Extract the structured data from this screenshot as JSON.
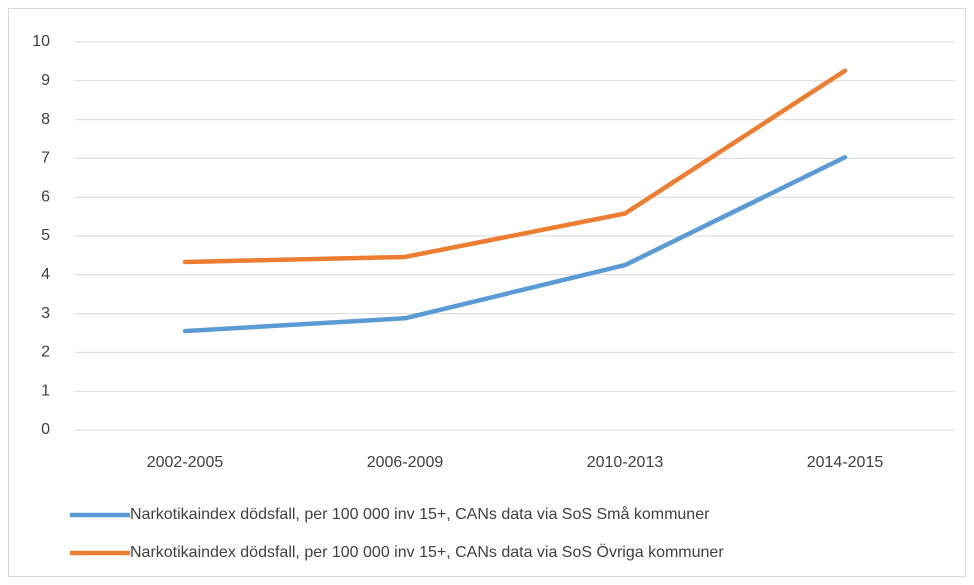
{
  "chart_data": {
    "type": "line",
    "categories": [
      "2002-2005",
      "2006-2009",
      "2010-2013",
      "2014-2015"
    ],
    "series": [
      {
        "name": "Narkotikaindex dödsfall, per 100 000 inv 15+, CANs data via SoS Små kommuner",
        "color": "#5b9bd5",
        "values": [
          2.55,
          2.88,
          4.25,
          7.03
        ]
      },
      {
        "name": "Narkotikaindex dödsfall, per 100 000 inv 15+, CANs data via SoS Övriga kommuner",
        "color": "#ed7d31",
        "values": [
          4.33,
          4.46,
          5.58,
          9.26
        ]
      }
    ],
    "ylim": [
      0,
      10
    ],
    "yticks": [
      0,
      1,
      2,
      3,
      4,
      5,
      6,
      7,
      8,
      9,
      10
    ],
    "grid": true,
    "legend": "bottom"
  }
}
